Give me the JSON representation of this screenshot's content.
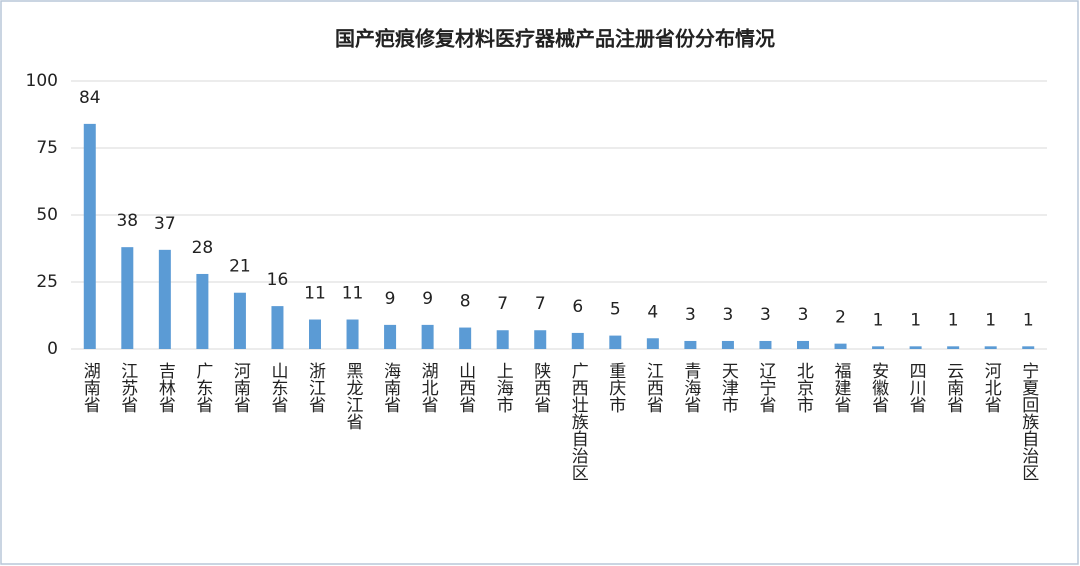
{
  "chart_data": {
    "type": "bar",
    "title": "国产疤痕修复材料医疗器械产品注册省份分布情况",
    "categories": [
      "湖南省",
      "江苏省",
      "吉林省",
      "广东省",
      "河南省",
      "山东省",
      "浙江省",
      "黑龙江省",
      "海南省",
      "湖北省",
      "山西省",
      "上海市",
      "陕西省",
      "广西壮族自治区",
      "重庆市",
      "江西省",
      "青海省",
      "天津市",
      "辽宁省",
      "北京市",
      "福建省",
      "安徽省",
      "四川省",
      "云南省",
      "河北省",
      "宁夏回族自治区"
    ],
    "values": [
      84,
      38,
      37,
      28,
      21,
      16,
      11,
      11,
      9,
      9,
      8,
      7,
      7,
      6,
      5,
      4,
      3,
      3,
      3,
      3,
      2,
      1,
      1,
      1,
      1,
      1
    ],
    "color": "#5b9bd5",
    "ylim": [
      0,
      100
    ],
    "yticks": [
      0,
      25,
      50,
      75,
      100
    ],
    "grid": true
  }
}
